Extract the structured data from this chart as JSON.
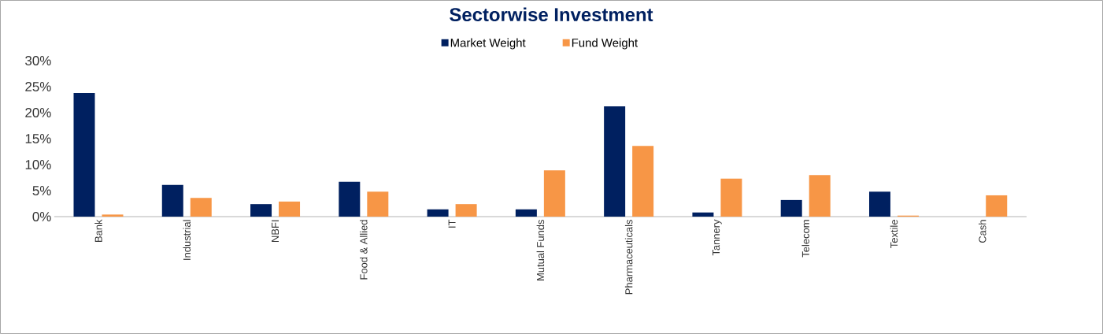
{
  "chart_data": {
    "type": "bar",
    "title": "Sectorwise Investment",
    "categories": [
      "Bank",
      "Industrial",
      "NBFI",
      "Food & Allied",
      "IT",
      "Mutual Funds",
      "Pharmaceuticals",
      "Tannery",
      "Telecom",
      "Textile",
      "Cash"
    ],
    "series": [
      {
        "name": "Market Weight",
        "color": "#002060",
        "values": [
          23.8,
          6.1,
          2.4,
          6.7,
          1.4,
          1.4,
          21.2,
          0.8,
          3.2,
          4.8,
          null
        ]
      },
      {
        "name": "Fund Weight",
        "color": "#f79646",
        "values": [
          0.4,
          3.6,
          2.9,
          4.8,
          2.4,
          8.9,
          13.6,
          7.3,
          8.0,
          0.2,
          4.1
        ]
      }
    ],
    "ylim": [
      0,
      30
    ],
    "yticks": [
      {
        "value": 0,
        "label": "0%"
      },
      {
        "value": 5,
        "label": "5%"
      },
      {
        "value": 10,
        "label": "10%"
      },
      {
        "value": 15,
        "label": "15%"
      },
      {
        "value": 20,
        "label": "20%"
      },
      {
        "value": 25,
        "label": "25%"
      },
      {
        "value": 30,
        "label": "30%"
      }
    ],
    "legend": "top"
  }
}
